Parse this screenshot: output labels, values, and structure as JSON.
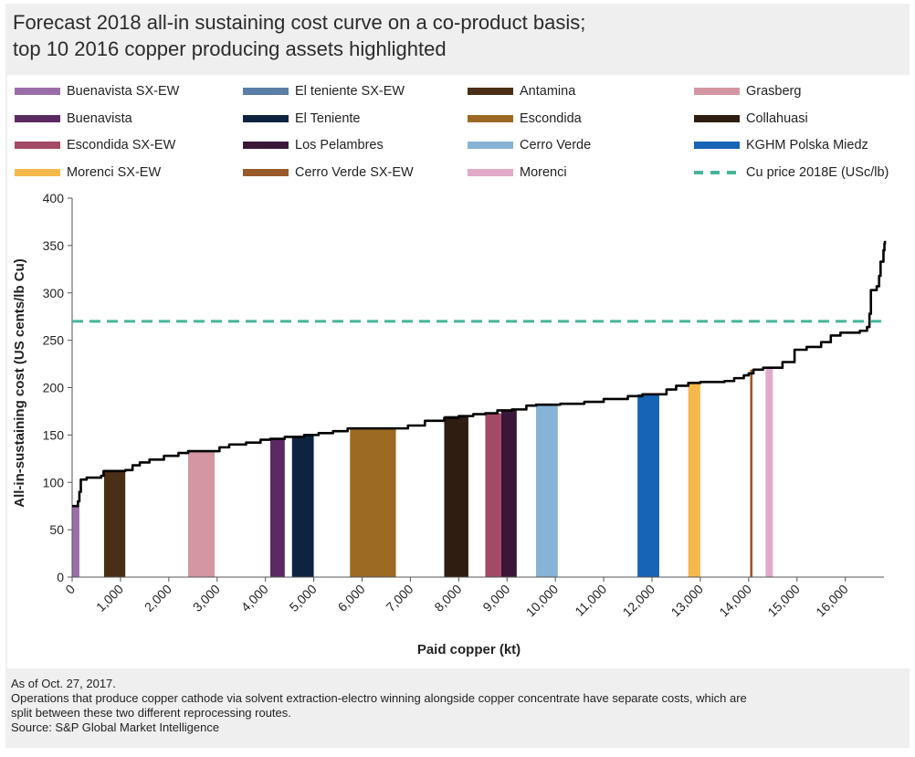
{
  "title_lines": [
    "Forecast 2018 all-in sustaining cost curve on a co-product basis;",
    "top 10 2016 copper producing assets highlighted"
  ],
  "legend": [
    {
      "label": "Buenavista SX-EW",
      "color": "#9a6fa8"
    },
    {
      "label": "El teniente SX-EW",
      "color": "#5a7ea6"
    },
    {
      "label": "Antamina",
      "color": "#4a2e16"
    },
    {
      "label": "Grasberg",
      "color": "#d496a3"
    },
    {
      "label": "Buenavista",
      "color": "#5c2a62"
    },
    {
      "label": "El Teniente",
      "color": "#0e2340"
    },
    {
      "label": "Escondida",
      "color": "#9c6a22"
    },
    {
      "label": "Collahuasi",
      "color": "#2e1d10"
    },
    {
      "label": "Escondida SX-EW",
      "color": "#a34a66"
    },
    {
      "label": "Los Pelambres",
      "color": "#3a1638"
    },
    {
      "label": "Cerro Verde",
      "color": "#86b3d6"
    },
    {
      "label": "KGHM Polska Miedz",
      "color": "#1763b5"
    },
    {
      "label": "Morenci SX-EW",
      "color": "#f5b84a"
    },
    {
      "label": "Cerro Verde SX-EW",
      "color": "#9a5a2a"
    },
    {
      "label": "Morenci",
      "color": "#e0aac8"
    },
    {
      "label": "Cu price 2018E (USc/lb)",
      "color": "#46b59a",
      "dashed": true
    }
  ],
  "footnotes": [
    "As of Oct. 27, 2017.",
    "Operations that produce copper cathode via solvent extraction-electro winning alongside copper concentrate have separate costs, which are",
    "split between these two different reprocessing routes.",
    "Source: S&P Global Market Intelligence"
  ],
  "chart_data": {
    "type": "area",
    "xlabel": "Paid copper (kt)",
    "ylabel": "All-in-sustaining cost (US cents/lb Cu)",
    "xlim": [
      0,
      16800
    ],
    "ylim": [
      0,
      400
    ],
    "xticks": [
      0,
      1000,
      2000,
      3000,
      4000,
      5000,
      6000,
      7000,
      8000,
      9000,
      10000,
      11000,
      12000,
      13000,
      14000,
      15000,
      16000
    ],
    "xtick_labels": [
      "0",
      "1,000",
      "2,000",
      "3,000",
      "4,000",
      "5,000",
      "6,000",
      "7,000",
      "8,000",
      "9,000",
      "10,000",
      "11,000",
      "12,000",
      "13,000",
      "14,000",
      "15,000",
      "16,000"
    ],
    "yticks": [
      0,
      50,
      100,
      150,
      200,
      250,
      300,
      350,
      400
    ],
    "ytick_labels": [
      "0",
      "50",
      "100",
      "150",
      "200",
      "250",
      "300",
      "350",
      "400"
    ],
    "cu_price": {
      "name": "Cu price 2018E (USc/lb)",
      "value": 270,
      "color": "#46b59a"
    },
    "cost_curve": [
      [
        0,
        75
      ],
      [
        100,
        75
      ],
      [
        120,
        80
      ],
      [
        150,
        90
      ],
      [
        180,
        103
      ],
      [
        300,
        105
      ],
      [
        600,
        107
      ],
      [
        650,
        112
      ],
      [
        1100,
        113
      ],
      [
        1250,
        118
      ],
      [
        1400,
        121
      ],
      [
        1600,
        124
      ],
      [
        1900,
        128
      ],
      [
        2200,
        131
      ],
      [
        2400,
        133
      ],
      [
        2950,
        133
      ],
      [
        3050,
        137
      ],
      [
        3250,
        140
      ],
      [
        3600,
        142
      ],
      [
        3900,
        145
      ],
      [
        4100,
        146
      ],
      [
        4400,
        148
      ],
      [
        4800,
        150
      ],
      [
        5100,
        152
      ],
      [
        5400,
        154
      ],
      [
        5700,
        157
      ],
      [
        6700,
        157
      ],
      [
        6950,
        160
      ],
      [
        7300,
        165
      ],
      [
        7700,
        168
      ],
      [
        8000,
        170
      ],
      [
        8300,
        172
      ],
      [
        8550,
        173
      ],
      [
        8800,
        176
      ],
      [
        9100,
        177
      ],
      [
        9400,
        181
      ],
      [
        9600,
        182
      ],
      [
        10100,
        183
      ],
      [
        10600,
        185
      ],
      [
        11000,
        188
      ],
      [
        11500,
        191
      ],
      [
        11800,
        193
      ],
      [
        12150,
        193
      ],
      [
        12300,
        198
      ],
      [
        12500,
        202
      ],
      [
        12750,
        205
      ],
      [
        13000,
        206
      ],
      [
        13500,
        207
      ],
      [
        13700,
        210
      ],
      [
        13900,
        213
      ],
      [
        14000,
        215
      ],
      [
        14100,
        219
      ],
      [
        14300,
        221
      ],
      [
        14500,
        221
      ],
      [
        14700,
        227
      ],
      [
        14950,
        240
      ],
      [
        15200,
        243
      ],
      [
        15500,
        248
      ],
      [
        15700,
        255
      ],
      [
        15900,
        258
      ],
      [
        16300,
        260
      ],
      [
        16450,
        264
      ],
      [
        16500,
        278
      ],
      [
        16530,
        303
      ],
      [
        16650,
        307
      ],
      [
        16700,
        318
      ],
      [
        16730,
        333
      ],
      [
        16790,
        345
      ],
      [
        16810,
        352
      ],
      [
        16820,
        355
      ]
    ],
    "highlighted_assets": [
      {
        "name": "Buenavista SX-EW",
        "x_start": 0,
        "x_end": 150,
        "value": 75,
        "color": "#9a6fa8"
      },
      {
        "name": "Antamina",
        "x_start": 660,
        "x_end": 1100,
        "value": 112,
        "color": "#4a2e16"
      },
      {
        "name": "Grasberg",
        "x_start": 2400,
        "x_end": 2950,
        "value": 133,
        "color": "#d496a3"
      },
      {
        "name": "Buenavista",
        "x_start": 4100,
        "x_end": 4400,
        "value": 147,
        "color": "#5c2a62"
      },
      {
        "name": "El Teniente",
        "x_start": 4550,
        "x_end": 5000,
        "value": 149,
        "color": "#0e2340"
      },
      {
        "name": "Escondida",
        "x_start": 5750,
        "x_end": 6700,
        "value": 157,
        "color": "#9c6a22"
      },
      {
        "name": "Collahuasi",
        "x_start": 7700,
        "x_end": 8200,
        "value": 170,
        "color": "#2e1d10"
      },
      {
        "name": "Escondida SX-EW",
        "x_start": 8550,
        "x_end": 8880,
        "value": 173,
        "color": "#a34a66"
      },
      {
        "name": "Los Pelambres",
        "x_start": 8880,
        "x_end": 9200,
        "value": 176,
        "color": "#3a1638"
      },
      {
        "name": "Cerro Verde",
        "x_start": 9600,
        "x_end": 10050,
        "value": 182,
        "color": "#86b3d6"
      },
      {
        "name": "KGHM Polska Miedz",
        "x_start": 11700,
        "x_end": 12150,
        "value": 193,
        "color": "#1763b5"
      },
      {
        "name": "Morenci SX-EW",
        "x_start": 12750,
        "x_end": 13000,
        "value": 205,
        "color": "#f5b84a"
      },
      {
        "name": "Cerro Verde SX-EW",
        "x_start": 14030,
        "x_end": 14080,
        "value": 219,
        "color": "#9a5a2a"
      },
      {
        "name": "Morenci",
        "x_start": 14350,
        "x_end": 14500,
        "value": 221,
        "color": "#e0aac8"
      }
    ]
  }
}
